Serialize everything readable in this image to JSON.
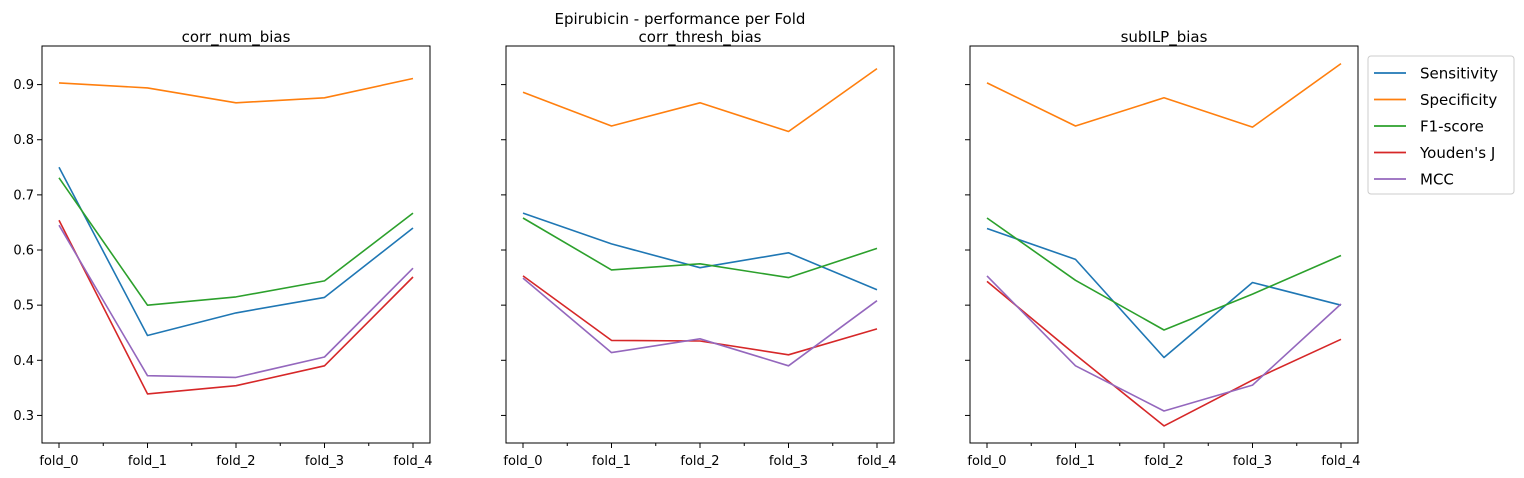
{
  "suptitle": "Epirubicin - performance per Fold",
  "colors": {
    "Sensitivity": "#1f77b4",
    "Specificity": "#ff7f0e",
    "F1-score": "#2ca02c",
    "Youden's J": "#d62728",
    "MCC": "#9467bd"
  },
  "legend": {
    "placement": "outside-right",
    "entries": [
      "Sensitivity",
      "Specificity",
      "F1-score",
      "Youden's J",
      "MCC"
    ]
  },
  "chart_data": [
    {
      "type": "line",
      "title": "corr_num_bias",
      "categories": [
        "fold_0",
        "fold_1",
        "fold_2",
        "fold_3",
        "fold_4"
      ],
      "ylim": [
        0.25,
        0.97
      ],
      "yticks": [
        0.3,
        0.4,
        0.5,
        0.6,
        0.7,
        0.8,
        0.9
      ],
      "show_ytick_labels": true,
      "grid": false,
      "series": [
        {
          "name": "Sensitivity",
          "values": [
            0.75,
            0.445,
            0.486,
            0.514,
            0.64
          ]
        },
        {
          "name": "Specificity",
          "values": [
            0.903,
            0.894,
            0.867,
            0.876,
            0.911
          ]
        },
        {
          "name": "F1-score",
          "values": [
            0.731,
            0.5,
            0.515,
            0.544,
            0.667
          ]
        },
        {
          "name": "Youden's J",
          "values": [
            0.654,
            0.339,
            0.354,
            0.39,
            0.551
          ]
        },
        {
          "name": "MCC",
          "values": [
            0.645,
            0.372,
            0.369,
            0.406,
            0.567
          ]
        }
      ]
    },
    {
      "type": "line",
      "title": "corr_thresh_bias",
      "categories": [
        "fold_0",
        "fold_1",
        "fold_2",
        "fold_3",
        "fold_4"
      ],
      "ylim": [
        0.25,
        0.97
      ],
      "yticks": [
        0.3,
        0.4,
        0.5,
        0.6,
        0.7,
        0.8,
        0.9
      ],
      "show_ytick_labels": false,
      "grid": false,
      "series": [
        {
          "name": "Sensitivity",
          "values": [
            0.667,
            0.611,
            0.568,
            0.595,
            0.528
          ]
        },
        {
          "name": "Specificity",
          "values": [
            0.886,
            0.825,
            0.867,
            0.815,
            0.929
          ]
        },
        {
          "name": "F1-score",
          "values": [
            0.658,
            0.564,
            0.575,
            0.55,
            0.603
          ]
        },
        {
          "name": "Youden's J",
          "values": [
            0.553,
            0.436,
            0.435,
            0.41,
            0.457
          ]
        },
        {
          "name": "MCC",
          "values": [
            0.549,
            0.414,
            0.439,
            0.39,
            0.508
          ]
        }
      ]
    },
    {
      "type": "line",
      "title": "subILP_bias",
      "categories": [
        "fold_0",
        "fold_1",
        "fold_2",
        "fold_3",
        "fold_4"
      ],
      "ylim": [
        0.25,
        0.97
      ],
      "yticks": [
        0.3,
        0.4,
        0.5,
        0.6,
        0.7,
        0.8,
        0.9
      ],
      "show_ytick_labels": false,
      "grid": false,
      "series": [
        {
          "name": "Sensitivity",
          "values": [
            0.639,
            0.583,
            0.405,
            0.541,
            0.5
          ]
        },
        {
          "name": "Specificity",
          "values": [
            0.903,
            0.825,
            0.876,
            0.823,
            0.938
          ]
        },
        {
          "name": "F1-score",
          "values": [
            0.658,
            0.545,
            0.455,
            0.52,
            0.59
          ]
        },
        {
          "name": "Youden's J",
          "values": [
            0.543,
            0.41,
            0.281,
            0.364,
            0.438
          ]
        },
        {
          "name": "MCC",
          "values": [
            0.553,
            0.39,
            0.308,
            0.355,
            0.502
          ]
        }
      ]
    }
  ]
}
